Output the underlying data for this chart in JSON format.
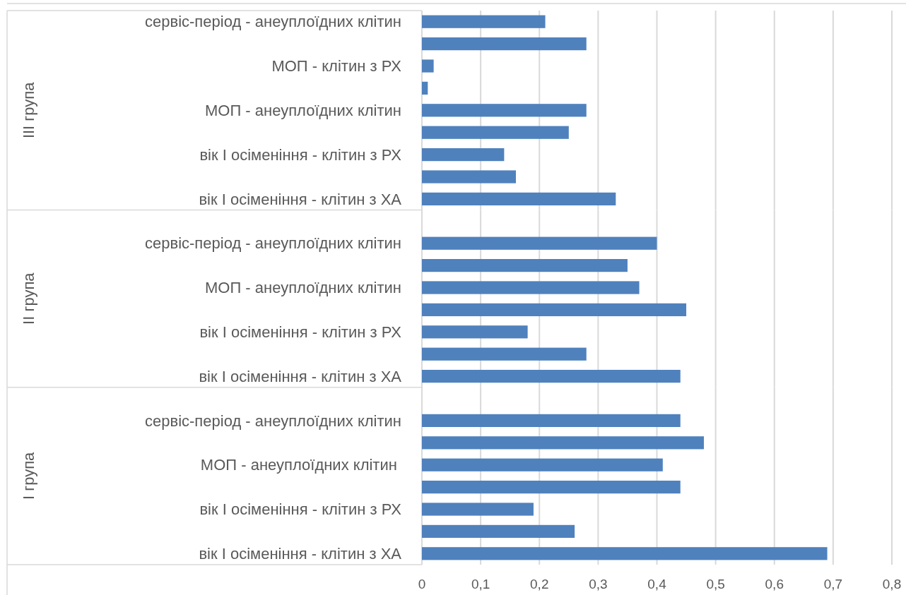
{
  "chart_data": [
    {
      "type": "bar",
      "orientation": "horizontal",
      "ylabel": "ІІІ група",
      "categories": [
        "сервіс-період - анеуплоїдних клітин",
        null,
        "МОП - клітин з РХ",
        null,
        "МОП - анеуплоїдних клітин",
        null,
        "вік І осіменіння - клітин з РХ",
        null,
        "вік І осіменіння - клітин з ХА"
      ],
      "values": [
        0.21,
        0.28,
        0.02,
        0.01,
        0.28,
        0.25,
        0.14,
        0.16,
        0.33
      ],
      "color": "#4f81bd",
      "xlim": [
        0,
        0.8
      ],
      "xticks": [
        {
          "value": 0,
          "label": null
        },
        {
          "value": 0.1,
          "label": null
        },
        {
          "value": 0.2,
          "label": null
        },
        {
          "value": 0.3,
          "label": null
        },
        {
          "value": 0.4,
          "label": null
        },
        {
          "value": 0.5,
          "label": null
        },
        {
          "value": 0.6,
          "label": null
        },
        {
          "value": 0.7,
          "label": null
        },
        {
          "value": 0.8,
          "label": null
        }
      ],
      "grid": "x",
      "tick_labels": "y"
    },
    {
      "type": "bar",
      "orientation": "horizontal",
      "ylabel": "ІІ група",
      "categories": [
        null,
        "сервіс-період - анеуплоїдних клітин",
        null,
        "МОП - анеуплоїдних клітин",
        null,
        "вік І осіменіння - клітин з РХ",
        null,
        "вік І осіменіння - клітин з ХА"
      ],
      "values": [
        null,
        0.4,
        0.35,
        0.37,
        0.45,
        0.18,
        0.28,
        0.44
      ],
      "color": "#4f81bd",
      "xlim": [
        0,
        0.8
      ],
      "xticks": [
        {
          "value": 0,
          "label": null
        },
        {
          "value": 0.1,
          "label": null
        },
        {
          "value": 0.2,
          "label": null
        },
        {
          "value": 0.3,
          "label": null
        },
        {
          "value": 0.4,
          "label": null
        },
        {
          "value": 0.5,
          "label": null
        },
        {
          "value": 0.6,
          "label": null
        },
        {
          "value": 0.7,
          "label": null
        },
        {
          "value": 0.8,
          "label": null
        }
      ],
      "grid": "x",
      "tick_labels": "y"
    },
    {
      "type": "bar",
      "orientation": "horizontal",
      "ylabel": "І група",
      "categories": [
        null,
        "сервіс-період - анеуплоїдних клітин",
        null,
        "МОП - анеуплоїдних клітин ",
        null,
        "вік І осіменіння - клітин з РХ",
        null,
        "вік І осіменіння - клітин з ХА"
      ],
      "values": [
        null,
        0.44,
        0.48,
        0.41,
        0.44,
        0.19,
        0.26,
        0.69
      ],
      "color": "#4f81bd",
      "xlim": [
        0,
        0.8
      ],
      "xticks": [
        {
          "value": 0,
          "label": "0"
        },
        {
          "value": 0.1,
          "label": "0,1"
        },
        {
          "value": 0.2,
          "label": "0,2"
        },
        {
          "value": 0.3,
          "label": "0,3"
        },
        {
          "value": 0.4,
          "label": "0,4"
        },
        {
          "value": 0.5,
          "label": "0,5"
        },
        {
          "value": 0.6,
          "label": "0,6"
        },
        {
          "value": 0.7,
          "label": "0,7"
        },
        {
          "value": 0.8,
          "label": "0,8"
        }
      ],
      "grid": "x"
    }
  ]
}
